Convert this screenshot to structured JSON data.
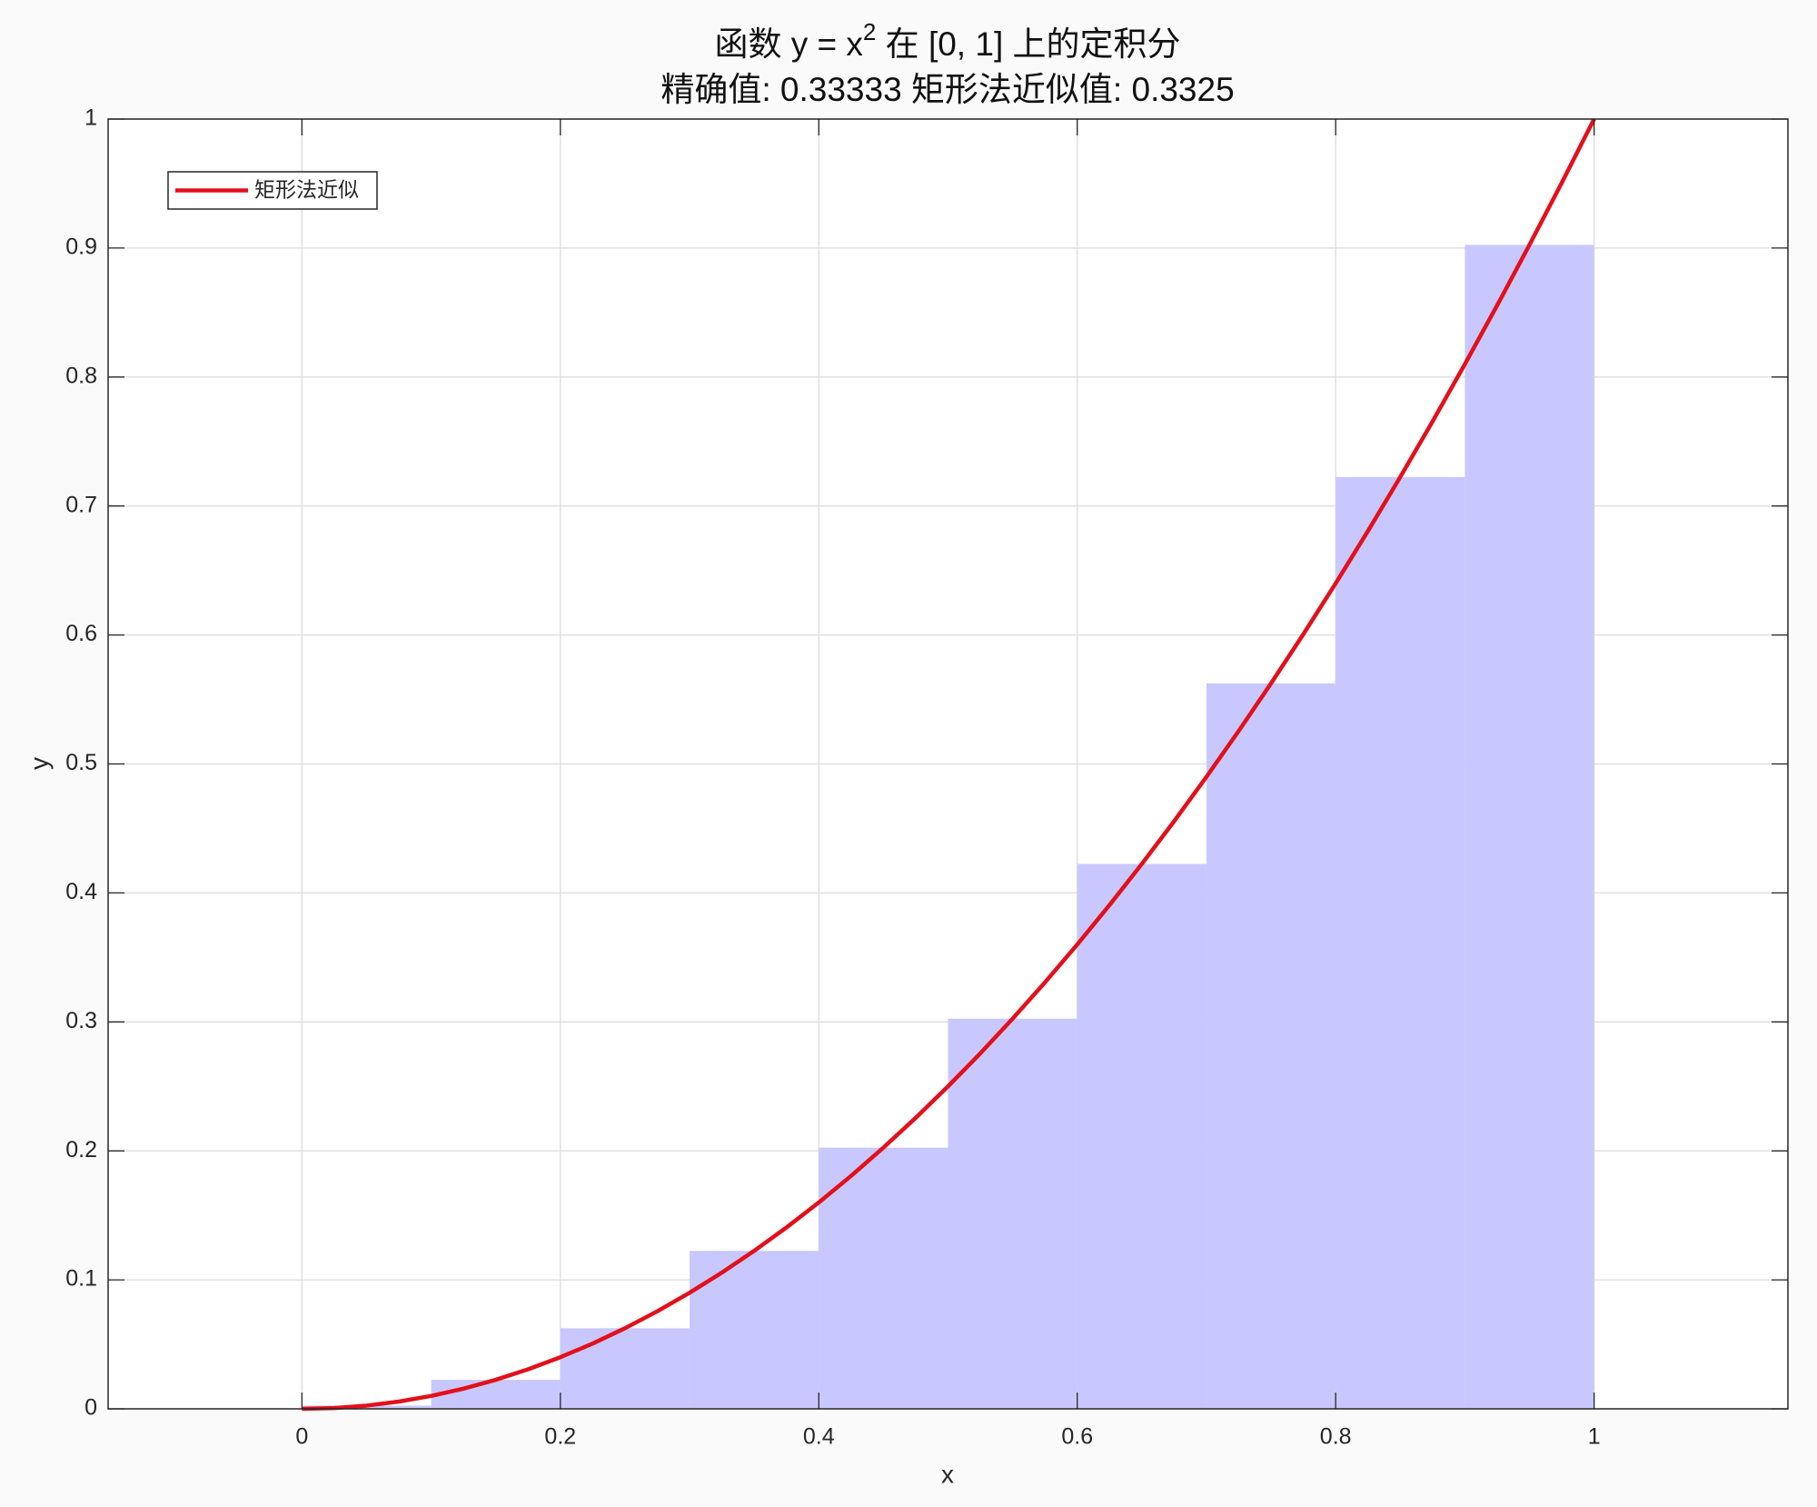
{
  "chart_data": {
    "type": "combo",
    "title_parts": [
      "函数 y = x",
      "2",
      " 在 [0, 1] 上的定积分"
    ],
    "subtitle": "精确值: 0.33333  矩形法近似值: 0.3325",
    "x_label": "x",
    "y_label": "y",
    "xlim": [
      -0.15,
      1.15
    ],
    "ylim": [
      0,
      1
    ],
    "xticks": [
      0,
      0.2,
      0.4,
      0.6,
      0.8,
      1
    ],
    "yticks": [
      0,
      0.1,
      0.2,
      0.3,
      0.4,
      0.5,
      0.6,
      0.7,
      0.8,
      0.9,
      1
    ],
    "grid": true,
    "legend": "upper left",
    "bars": {
      "color": "#c8c8ff",
      "bins": [
        0,
        0.1,
        0.2,
        0.3,
        0.4,
        0.5,
        0.6,
        0.7,
        0.8,
        0.9,
        1
      ],
      "values": [
        0.0025,
        0.0225,
        0.0625,
        0.1225,
        0.2025,
        0.3025,
        0.4225,
        0.5625,
        0.7225,
        0.9025
      ]
    },
    "series": [
      {
        "name": "矩形法近似",
        "color": "#e3101b",
        "x": [
          0,
          0.025,
          0.05,
          0.075,
          0.1,
          0.125,
          0.15,
          0.175,
          0.2,
          0.225,
          0.25,
          0.275,
          0.3,
          0.325,
          0.35,
          0.375,
          0.4,
          0.425,
          0.45,
          0.475,
          0.5,
          0.525,
          0.55,
          0.575,
          0.6,
          0.625,
          0.65,
          0.675,
          0.7,
          0.725,
          0.75,
          0.775,
          0.8,
          0.825,
          0.85,
          0.875,
          0.9,
          0.925,
          0.95,
          0.975,
          1
        ],
        "values": [
          0,
          0.000625,
          0.0025,
          0.005625,
          0.01,
          0.015625,
          0.0225,
          0.030625,
          0.04,
          0.050625,
          0.0625,
          0.075625,
          0.09,
          0.105625,
          0.1225,
          0.140625,
          0.16,
          0.180625,
          0.2025,
          0.225625,
          0.25,
          0.275625,
          0.3025,
          0.330625,
          0.36,
          0.390625,
          0.4225,
          0.455625,
          0.49,
          0.525625,
          0.5625,
          0.600625,
          0.64,
          0.680625,
          0.7225,
          0.765625,
          0.81,
          0.855625,
          0.9025,
          0.950625,
          1
        ]
      }
    ]
  }
}
